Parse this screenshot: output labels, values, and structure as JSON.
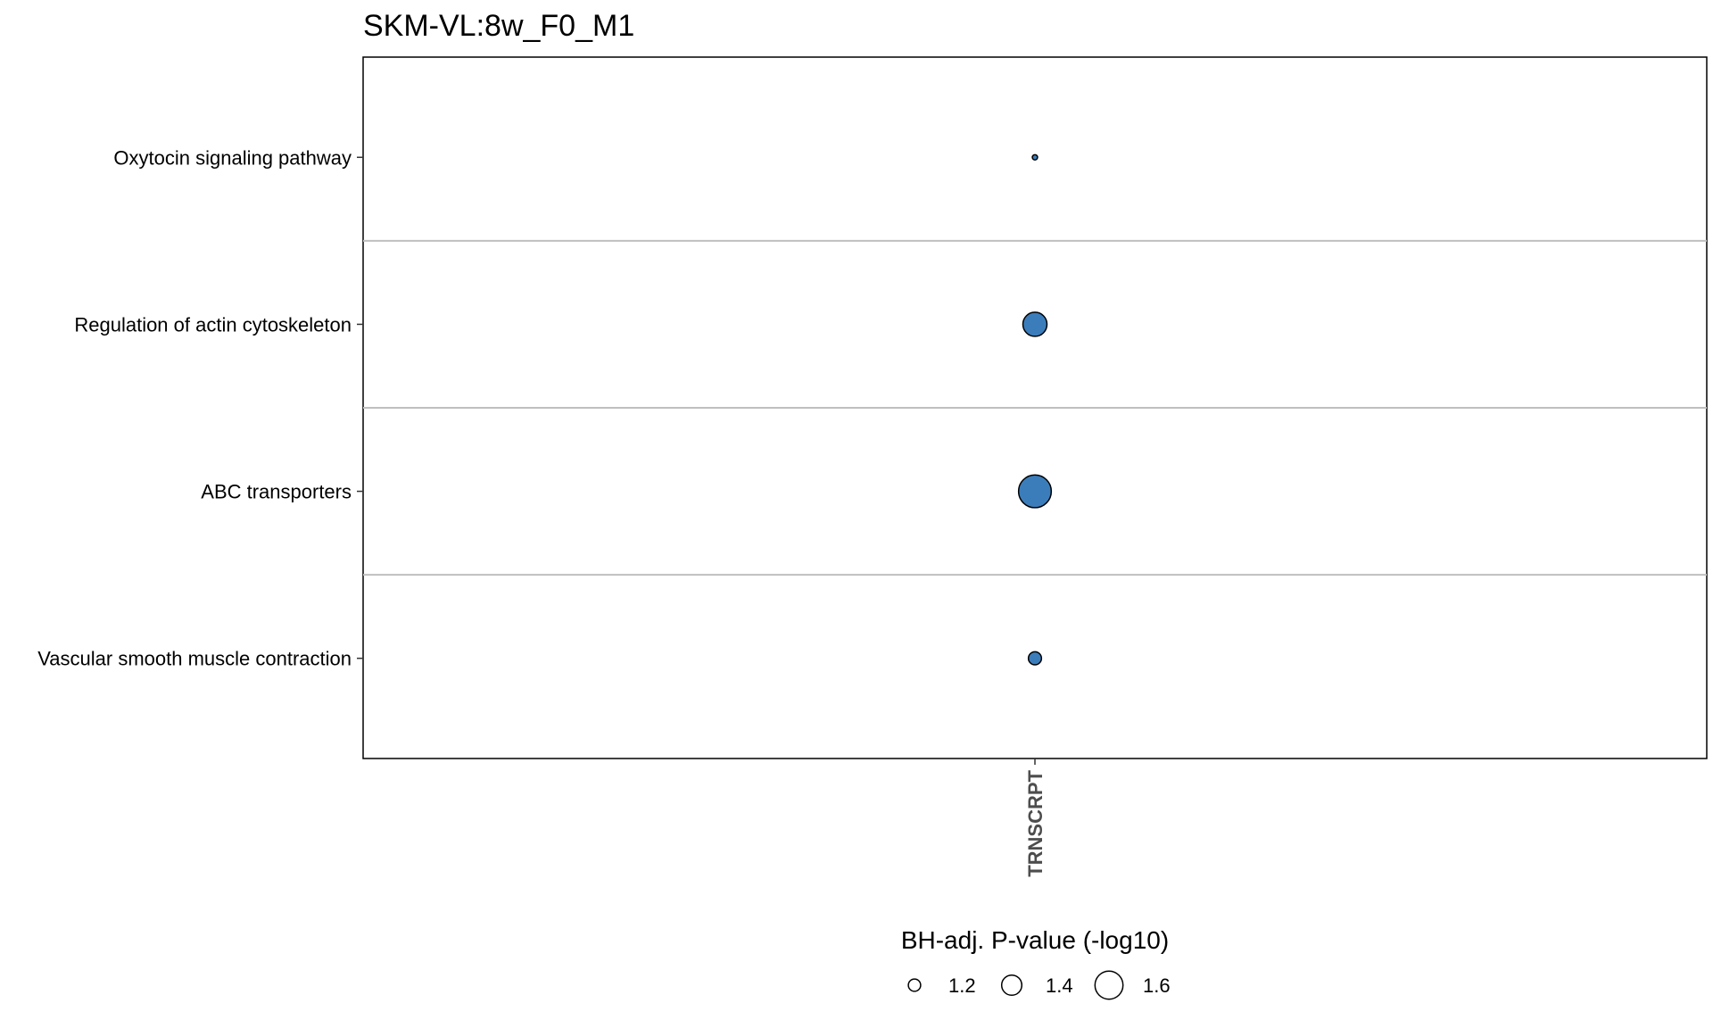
{
  "chart_data": {
    "type": "scatter",
    "title": "SKM-VL:8w_F0_M1",
    "x_categories": [
      "TRNSCRPT"
    ],
    "y_categories": [
      "Oxytocin signaling pathway",
      "Regulation of actin cytoskeleton",
      "ABC transporters",
      "Vascular smooth muscle contraction"
    ],
    "points": [
      {
        "x": "TRNSCRPT",
        "y": "Oxytocin signaling pathway",
        "size_value": 1.02
      },
      {
        "x": "TRNSCRPT",
        "y": "Regulation of actin cytoskeleton",
        "size_value": 1.5
      },
      {
        "x": "TRNSCRPT",
        "y": "ABC transporters",
        "size_value": 1.72
      },
      {
        "x": "TRNSCRPT",
        "y": "Vascular smooth muscle contraction",
        "size_value": 1.22
      }
    ],
    "point_color": "#3b7dbb",
    "point_stroke": "#000000",
    "grid": "horizontal separators between categories",
    "legend": {
      "title": "BH-adj. P-value (-log10)",
      "placement": "bottom",
      "entries": [
        {
          "label": "1.2",
          "value": 1.2
        },
        {
          "label": "1.4",
          "value": 1.4
        },
        {
          "label": "1.6",
          "value": 1.6
        }
      ]
    }
  }
}
